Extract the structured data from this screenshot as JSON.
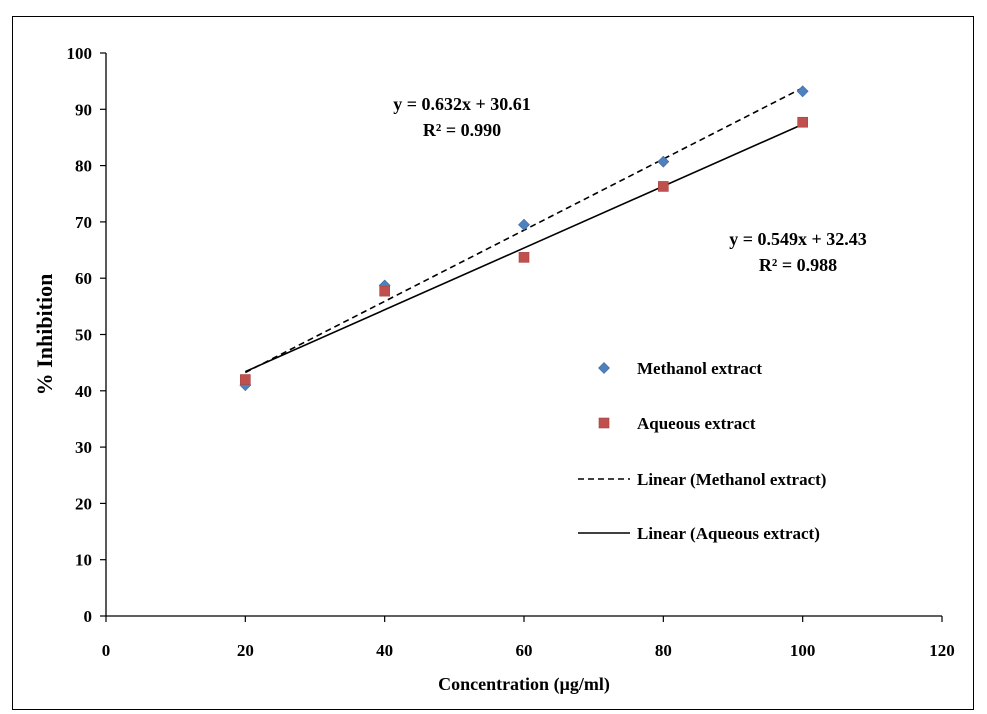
{
  "chart_data": {
    "type": "scatter",
    "xlabel": "Concentration (µg/ml)",
    "ylabel": "% Inhibition",
    "xlim": [
      0,
      120
    ],
    "ylim": [
      0,
      100
    ],
    "xticks": [
      0,
      20,
      40,
      60,
      80,
      100,
      120
    ],
    "yticks": [
      0,
      10,
      20,
      30,
      40,
      50,
      60,
      70,
      80,
      90,
      100
    ],
    "grid": false,
    "legend_position": "right",
    "series": [
      {
        "name": "Methanol extract",
        "marker": "diamond",
        "color": "#4F81BD",
        "x": [
          20,
          40,
          60,
          80,
          100
        ],
        "y": [
          41,
          58.7,
          69.5,
          80.7,
          93.2
        ]
      },
      {
        "name": "Aqueous extract",
        "marker": "square",
        "color": "#C0504D",
        "x": [
          20,
          40,
          60,
          80,
          100
        ],
        "y": [
          42,
          57.7,
          63.7,
          76.3,
          87.7
        ]
      }
    ],
    "trendlines": [
      {
        "name": "Linear (Methanol extract)",
        "style": "dashed",
        "slope": 0.632,
        "intercept": 30.61,
        "x_range": [
          20,
          100
        ],
        "equation": "y = 0.632x + 30.61",
        "r2": "R² = 0.990"
      },
      {
        "name": "Linear (Aqueous extract)",
        "style": "solid",
        "slope": 0.549,
        "intercept": 32.43,
        "x_range": [
          20,
          100
        ],
        "equation": "y = 0.549x + 32.43",
        "r2": "R² = 0.988"
      }
    ]
  }
}
